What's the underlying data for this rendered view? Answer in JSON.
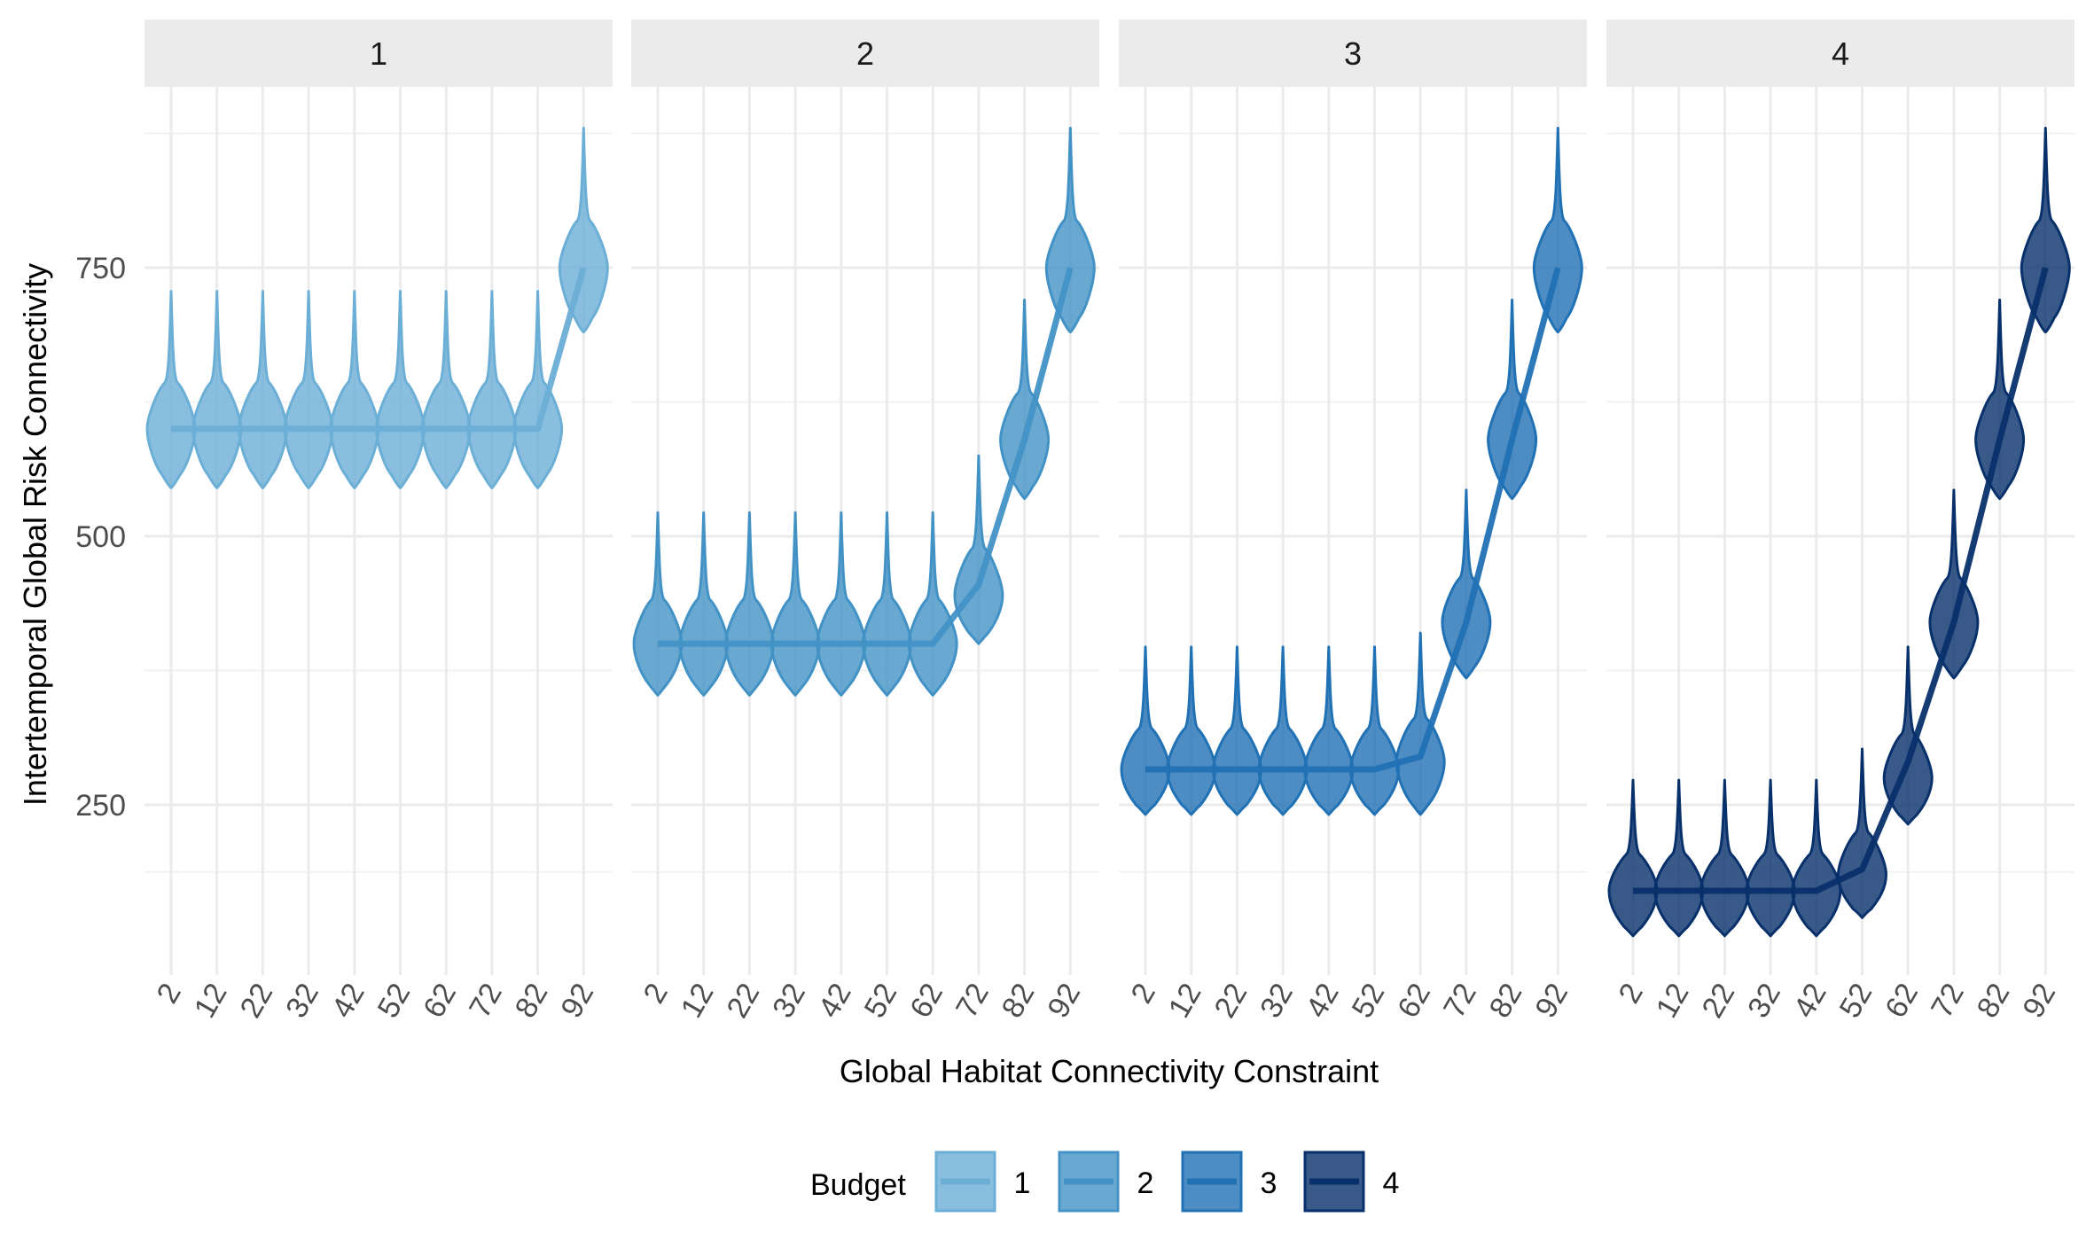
{
  "chart_data": {
    "type": "violin",
    "facet_variable": "Budget",
    "facets": [
      "1",
      "2",
      "3",
      "4"
    ],
    "xlabel": "Global Habitat Connectivity Constraint",
    "ylabel": "Intertemporal Global Risk Connectivity",
    "x_categories": [
      "2",
      "12",
      "22",
      "32",
      "42",
      "52",
      "62",
      "72",
      "82",
      "92"
    ],
    "y_ticks": [
      250,
      500,
      750
    ],
    "y_tick_labels": [
      "250",
      "500",
      "750"
    ],
    "ylim": [
      125,
      890
    ],
    "grid": true,
    "legend": {
      "title": "Budget",
      "position": "bottom",
      "entries": [
        "1",
        "2",
        "3",
        "4"
      ]
    },
    "colors": [
      "#6baed6",
      "#4292c6",
      "#2171b5",
      "#08306b"
    ],
    "series": [
      {
        "name": "1",
        "median_line": [
          600,
          600,
          600,
          600,
          600,
          600,
          600,
          600,
          600,
          750
        ],
        "violins": [
          {
            "min": 545,
            "max": 728,
            "peak": 600
          },
          {
            "min": 545,
            "max": 728,
            "peak": 600
          },
          {
            "min": 545,
            "max": 728,
            "peak": 600
          },
          {
            "min": 545,
            "max": 728,
            "peak": 600
          },
          {
            "min": 545,
            "max": 728,
            "peak": 600
          },
          {
            "min": 545,
            "max": 728,
            "peak": 600
          },
          {
            "min": 545,
            "max": 728,
            "peak": 600
          },
          {
            "min": 545,
            "max": 728,
            "peak": 600
          },
          {
            "min": 545,
            "max": 728,
            "peak": 600
          },
          {
            "min": 690,
            "max": 880,
            "peak": 750
          }
        ]
      },
      {
        "name": "2",
        "median_line": [
          400,
          400,
          400,
          400,
          400,
          400,
          400,
          455,
          590,
          750
        ],
        "violins": [
          {
            "min": 352,
            "max": 522,
            "peak": 400
          },
          {
            "min": 352,
            "max": 522,
            "peak": 400
          },
          {
            "min": 352,
            "max": 522,
            "peak": 400
          },
          {
            "min": 352,
            "max": 522,
            "peak": 400
          },
          {
            "min": 352,
            "max": 522,
            "peak": 400
          },
          {
            "min": 352,
            "max": 522,
            "peak": 400
          },
          {
            "min": 352,
            "max": 522,
            "peak": 400
          },
          {
            "min": 400,
            "max": 575,
            "peak": 445
          },
          {
            "min": 535,
            "max": 720,
            "peak": 590
          },
          {
            "min": 690,
            "max": 880,
            "peak": 750
          }
        ]
      },
      {
        "name": "3",
        "median_line": [
          283,
          283,
          283,
          283,
          283,
          283,
          295,
          420,
          590,
          750
        ],
        "violins": [
          {
            "min": 241,
            "max": 397,
            "peak": 283
          },
          {
            "min": 241,
            "max": 397,
            "peak": 283
          },
          {
            "min": 241,
            "max": 397,
            "peak": 283
          },
          {
            "min": 241,
            "max": 397,
            "peak": 283
          },
          {
            "min": 241,
            "max": 397,
            "peak": 283
          },
          {
            "min": 241,
            "max": 397,
            "peak": 283
          },
          {
            "min": 241,
            "max": 410,
            "peak": 290
          },
          {
            "min": 368,
            "max": 543,
            "peak": 420
          },
          {
            "min": 535,
            "max": 720,
            "peak": 590
          },
          {
            "min": 690,
            "max": 880,
            "peak": 750
          }
        ]
      },
      {
        "name": "4",
        "median_line": [
          170,
          170,
          170,
          170,
          170,
          190,
          290,
          420,
          590,
          750
        ],
        "violins": [
          {
            "min": 128,
            "max": 273,
            "peak": 170
          },
          {
            "min": 128,
            "max": 273,
            "peak": 170
          },
          {
            "min": 128,
            "max": 273,
            "peak": 170
          },
          {
            "min": 128,
            "max": 273,
            "peak": 170
          },
          {
            "min": 128,
            "max": 273,
            "peak": 170
          },
          {
            "min": 145,
            "max": 302,
            "peak": 185
          },
          {
            "min": 232,
            "max": 397,
            "peak": 275
          },
          {
            "min": 368,
            "max": 543,
            "peak": 420
          },
          {
            "min": 535,
            "max": 720,
            "peak": 590
          },
          {
            "min": 690,
            "max": 880,
            "peak": 750
          }
        ]
      }
    ]
  }
}
